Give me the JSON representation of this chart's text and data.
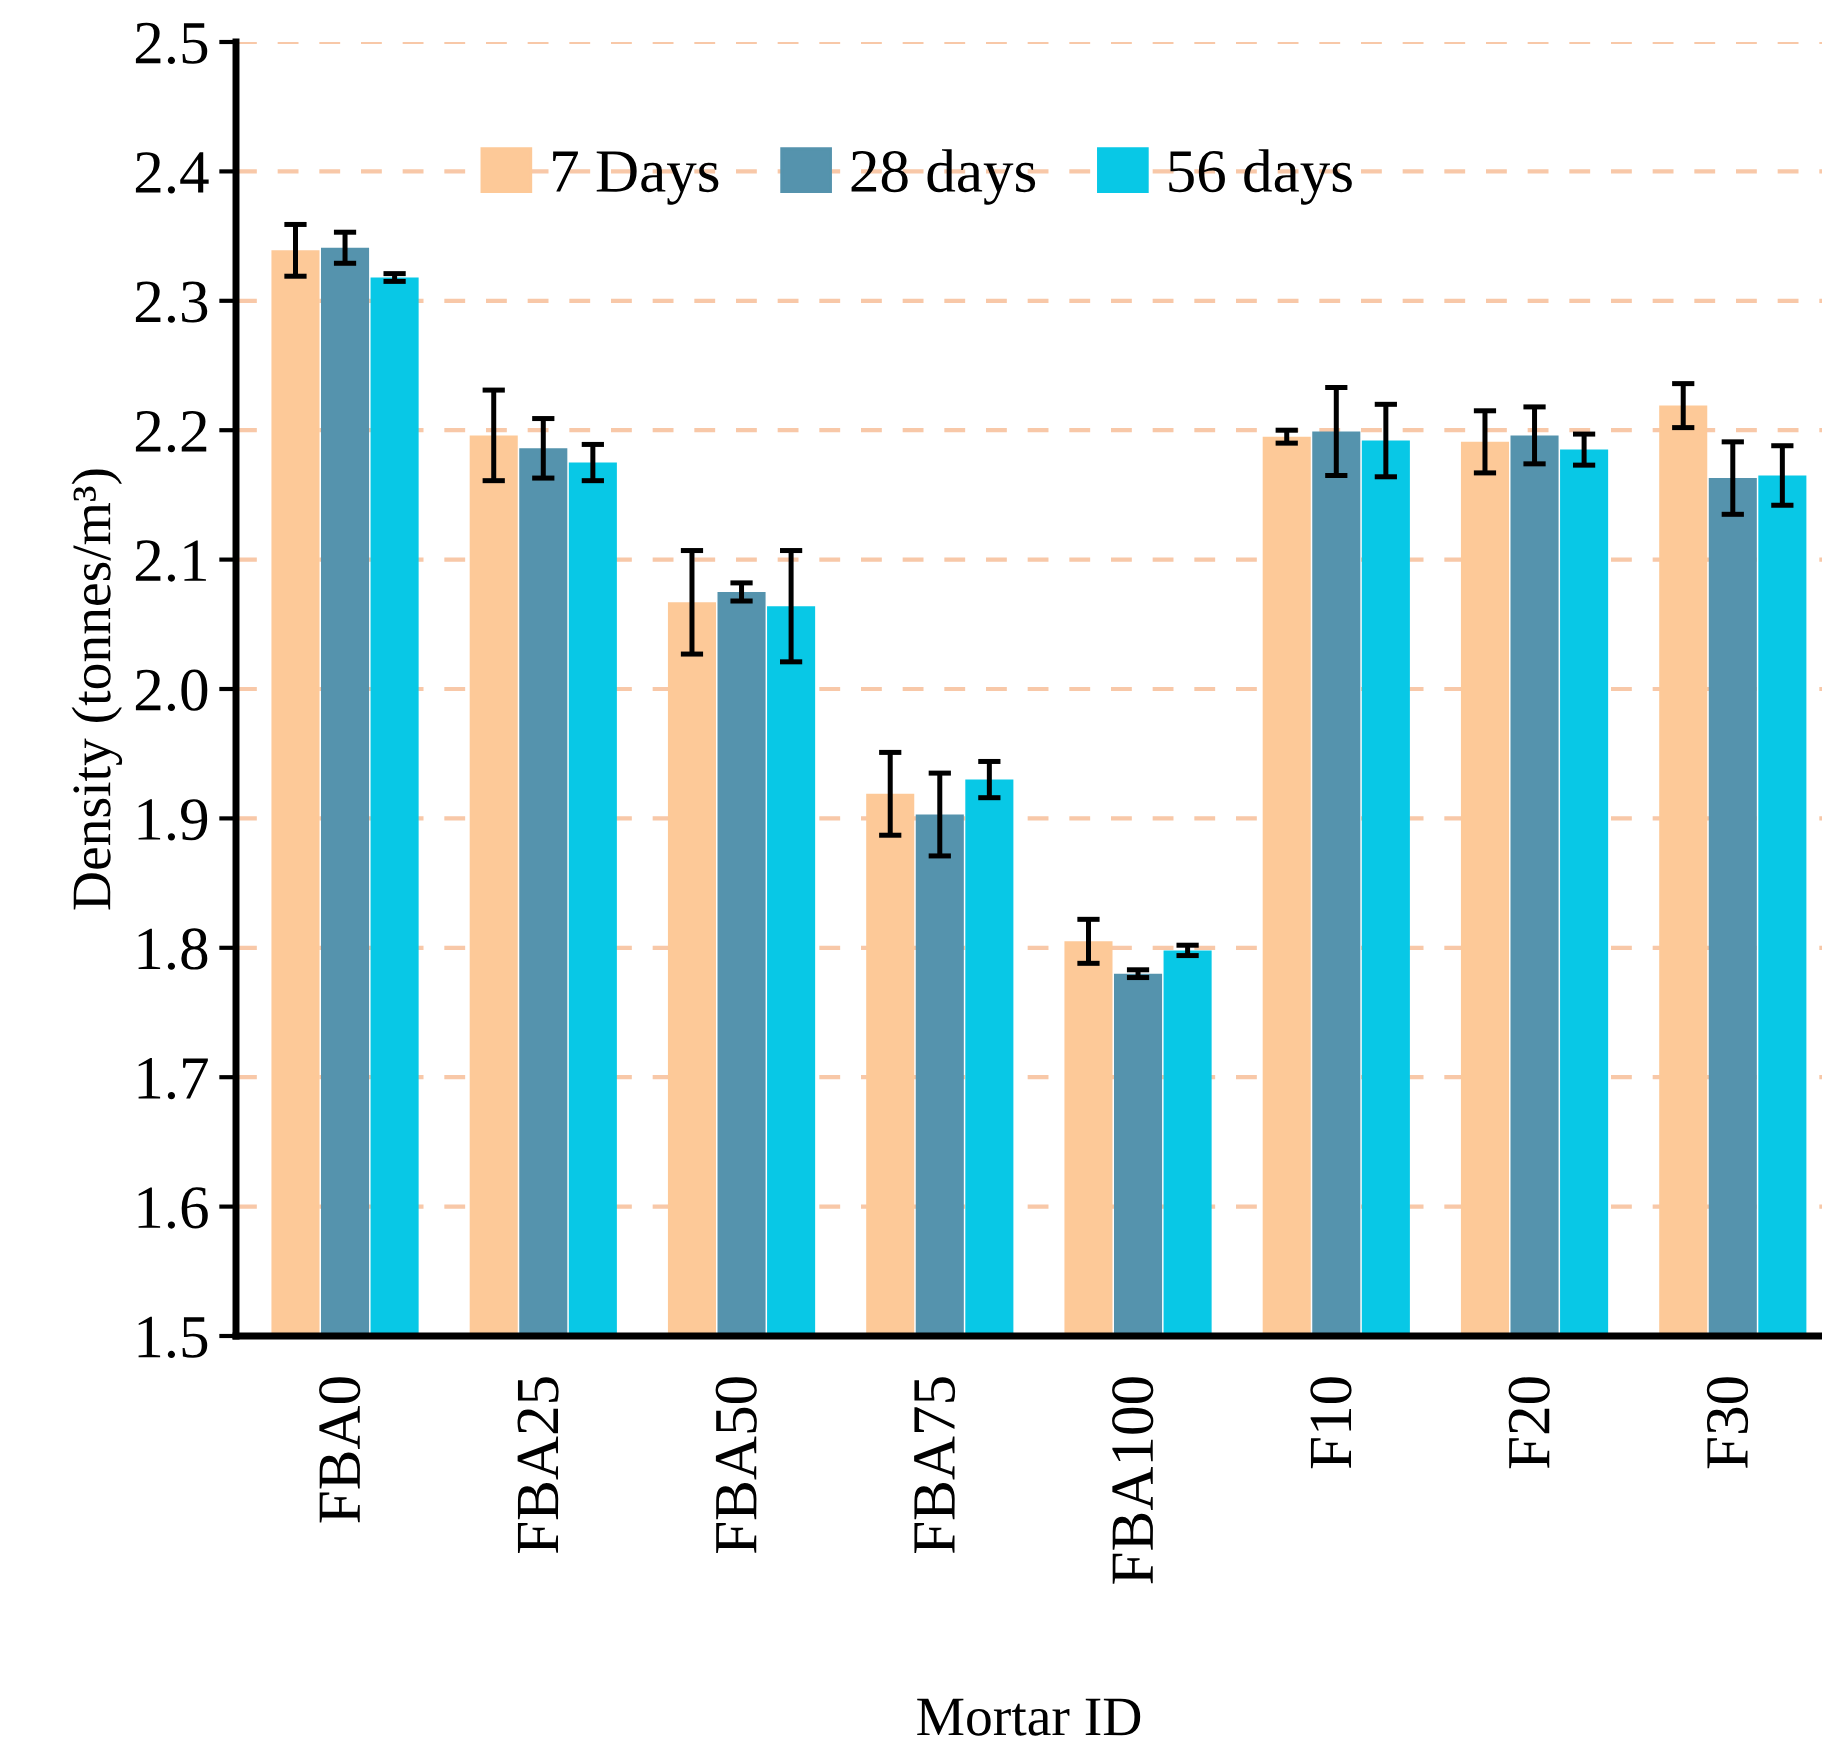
{
  "chart_data": {
    "type": "bar",
    "xlabel": "Mortar ID",
    "ylabel": "Density (tonnes/m³)",
    "categories": [
      "FBA0",
      "FBA25",
      "FBA50",
      "FBA75",
      "FBA100",
      "F10",
      "F20",
      "F30"
    ],
    "series": [
      {
        "name": "7 Days",
        "color": "#fdc998",
        "values": [
          2.339,
          2.196,
          2.067,
          1.919,
          1.805,
          2.195,
          2.191,
          2.219
        ],
        "errors": [
          0.02,
          0.035,
          0.04,
          0.032,
          0.017,
          0.005,
          0.024,
          0.017
        ]
      },
      {
        "name": "28 days",
        "color": "#5593ad",
        "values": [
          2.341,
          2.186,
          2.075,
          1.903,
          1.78,
          2.199,
          2.196,
          2.163
        ],
        "errors": [
          0.012,
          0.023,
          0.007,
          0.032,
          0.003,
          0.034,
          0.022,
          0.028
        ]
      },
      {
        "name": "56 days",
        "color": "#08c8e6",
        "values": [
          2.318,
          2.175,
          2.064,
          1.93,
          1.798,
          2.192,
          2.185,
          2.165
        ],
        "errors": [
          0.003,
          0.014,
          0.043,
          0.014,
          0.004,
          0.028,
          0.012,
          0.023
        ]
      }
    ],
    "ylim": [
      1.5,
      2.5
    ],
    "yticks": [
      1.5,
      1.6,
      1.7,
      1.8,
      1.9,
      {
        "value": 2,
        "label": "2.0"
      },
      2.1,
      2.2,
      2.3,
      2.4,
      2.5
    ],
    "grid": "y",
    "legend": "top"
  }
}
